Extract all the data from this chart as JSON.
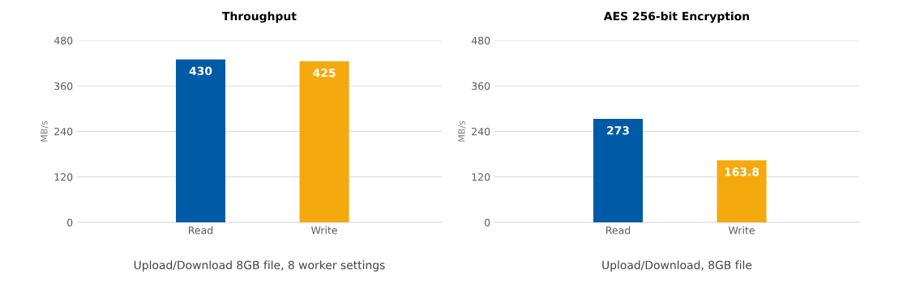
{
  "chart_data": [
    {
      "type": "bar",
      "title": "Throughput",
      "categories": [
        "Read",
        "Write"
      ],
      "values": [
        430,
        425
      ],
      "colors": [
        "#005aa5",
        "#f4a90f"
      ],
      "ylabel": "MB/s",
      "ylim": [
        0,
        480
      ],
      "yticks": [
        0,
        120,
        240,
        360,
        480
      ],
      "grid": "y",
      "data_labels": true,
      "annotations": [
        "Upload/Download 8GB file, 8 worker settings"
      ]
    },
    {
      "type": "bar",
      "title": "AES 256-bit Encryption",
      "categories": [
        "Read",
        "Write"
      ],
      "values": [
        273,
        163.8
      ],
      "colors": [
        "#005aa5",
        "#f4a90f"
      ],
      "ylabel": "MB/s",
      "ylim": [
        0,
        480
      ],
      "yticks": [
        0,
        120,
        240,
        360,
        480
      ],
      "grid": "y",
      "data_labels": true,
      "annotations": [
        "Upload/Download, 8GB file"
      ]
    }
  ]
}
